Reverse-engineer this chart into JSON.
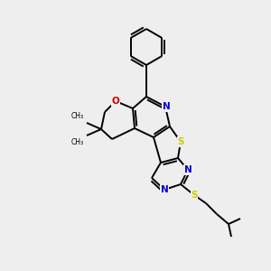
{
  "bg_color": "#eeeeee",
  "atom_colors": {
    "C": "#000000",
    "N": "#0000cc",
    "O": "#cc0000",
    "S": "#cccc00"
  },
  "bond_color": "#000000",
  "line_width": 1.4,
  "figsize": [
    3.0,
    3.0
  ],
  "dpi": 100
}
